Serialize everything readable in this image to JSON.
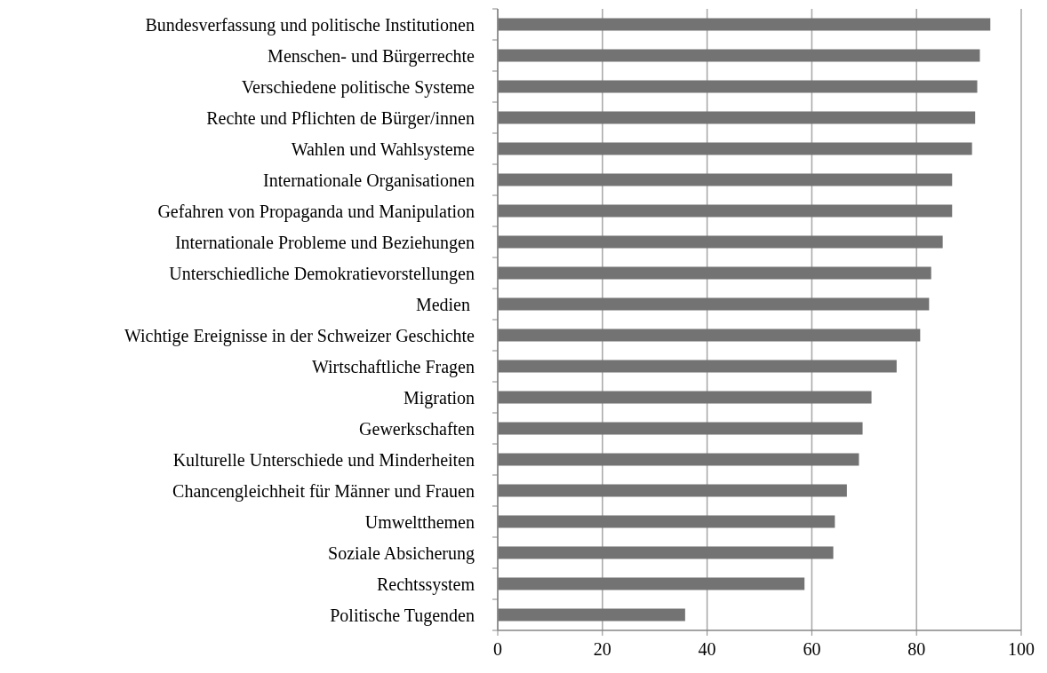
{
  "chart_data": {
    "type": "bar",
    "orientation": "horizontal",
    "categories": [
      "Bundesverfassung und politische Institutionen",
      "Menschen- und Bürgerrechte",
      "Verschiedene politische Systeme",
      "Rechte und Pflichten de Bürger/innen",
      "Wahlen und Wahlsysteme",
      "Internationale Organisationen",
      "Gefahren von Propaganda und Manipulation",
      "Internationale Probleme und Beziehungen",
      "Unterschiedliche Demokratievorstellungen",
      "Medien ",
      "Wichtige Ereignisse in der Schweizer Geschichte",
      "Wirtschaftliche Fragen",
      "Migration",
      "Gewerkschaften",
      "Kulturelle Unterschiede und Minderheiten",
      "Chancengleichheit für Männer und Frauen",
      "Umweltthemen",
      "Soziale Absicherung",
      "Rechtssystem",
      "Politische Tugenden"
    ],
    "values": [
      94.1,
      92.1,
      91.6,
      91.2,
      90.6,
      86.8,
      86.8,
      85.0,
      82.8,
      82.4,
      80.7,
      76.2,
      71.4,
      69.7,
      69.0,
      66.7,
      64.4,
      64.1,
      58.6,
      35.8
    ],
    "color": "#737373",
    "xlim": [
      0,
      100
    ],
    "xticks": [
      0,
      20,
      40,
      60,
      80,
      100
    ],
    "grid": "x"
  }
}
